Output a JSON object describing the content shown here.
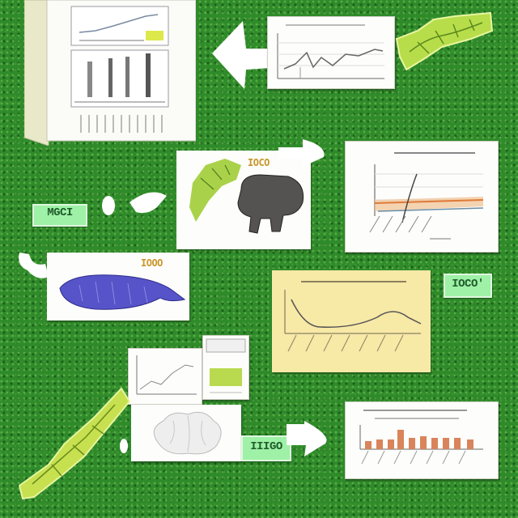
{
  "labels": {
    "tag_left": "MGCI",
    "tag_right": "IOCO'",
    "tag_bottom": "IIIGO",
    "card_title_upper": "IOCO",
    "card_title_lower": "IOOO"
  }
}
